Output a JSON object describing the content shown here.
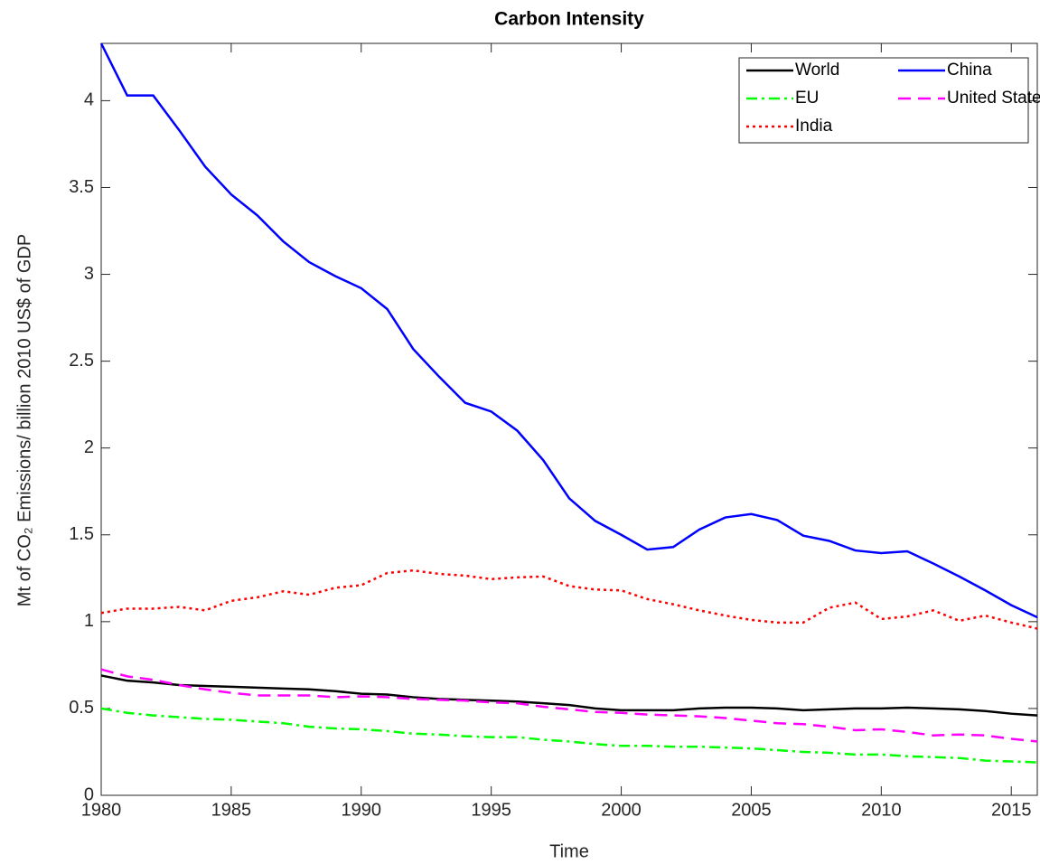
{
  "chart_data": {
    "type": "line",
    "title": "Carbon Intensity",
    "x_label": "Time",
    "y_label": "Mt of CO₂ Emissions/ billion 2010 US$ of GDP",
    "x": [
      1980,
      1981,
      1982,
      1983,
      1984,
      1985,
      1986,
      1987,
      1988,
      1989,
      1990,
      1991,
      1992,
      1993,
      1994,
      1995,
      1996,
      1997,
      1998,
      1999,
      2000,
      2001,
      2002,
      2003,
      2004,
      2005,
      2006,
      2007,
      2008,
      2009,
      2010,
      2011,
      2012,
      2013,
      2014,
      2015,
      2016
    ],
    "xlim": [
      1980,
      2016
    ],
    "xticks": [
      1980,
      1985,
      1990,
      1995,
      2000,
      2005,
      2010,
      2015
    ],
    "ylim": [
      0,
      4.33
    ],
    "yticks": [
      0,
      0.5,
      1,
      1.5,
      2,
      2.5,
      3,
      3.5,
      4
    ],
    "legend": "upper right",
    "series": [
      {
        "name": "World",
        "color": "#000000",
        "linestyle": "solid",
        "values": [
          0.69,
          0.66,
          0.65,
          0.635,
          0.63,
          0.625,
          0.62,
          0.615,
          0.61,
          0.6,
          0.585,
          0.58,
          0.565,
          0.555,
          0.55,
          0.545,
          0.54,
          0.53,
          0.52,
          0.5,
          0.49,
          0.49,
          0.49,
          0.5,
          0.505,
          0.505,
          0.5,
          0.49,
          0.495,
          0.5,
          0.5,
          0.505,
          0.5,
          0.495,
          0.485,
          0.47,
          0.46
        ]
      },
      {
        "name": "China",
        "color": "#0000ff",
        "linestyle": "solid",
        "values": [
          4.33,
          4.03,
          4.03,
          3.83,
          3.62,
          3.46,
          3.34,
          3.19,
          3.07,
          2.99,
          2.92,
          2.8,
          2.57,
          2.41,
          2.26,
          2.21,
          2.1,
          1.93,
          1.71,
          1.58,
          1.5,
          1.415,
          1.43,
          1.53,
          1.6,
          1.62,
          1.585,
          1.495,
          1.465,
          1.41,
          1.395,
          1.405,
          1.335,
          1.26,
          1.18,
          1.095,
          1.025
        ]
      },
      {
        "name": "EU",
        "color": "#00ff00",
        "linestyle": "dashdot",
        "values": [
          0.5,
          0.475,
          0.46,
          0.45,
          0.44,
          0.435,
          0.425,
          0.415,
          0.395,
          0.385,
          0.38,
          0.37,
          0.355,
          0.35,
          0.34,
          0.335,
          0.335,
          0.32,
          0.31,
          0.295,
          0.285,
          0.285,
          0.28,
          0.28,
          0.275,
          0.27,
          0.26,
          0.25,
          0.245,
          0.235,
          0.235,
          0.225,
          0.22,
          0.215,
          0.2,
          0.195,
          0.19
        ]
      },
      {
        "name": "United States",
        "color": "#ff00ff",
        "linestyle": "dashed",
        "values": [
          0.725,
          0.685,
          0.665,
          0.635,
          0.61,
          0.59,
          0.575,
          0.575,
          0.575,
          0.565,
          0.57,
          0.565,
          0.555,
          0.55,
          0.545,
          0.535,
          0.53,
          0.51,
          0.495,
          0.48,
          0.475,
          0.465,
          0.46,
          0.455,
          0.445,
          0.43,
          0.415,
          0.41,
          0.395,
          0.375,
          0.38,
          0.365,
          0.345,
          0.35,
          0.345,
          0.325,
          0.31
        ]
      },
      {
        "name": "India",
        "color": "#ff0000",
        "linestyle": "dotted",
        "values": [
          1.05,
          1.075,
          1.075,
          1.085,
          1.065,
          1.12,
          1.14,
          1.175,
          1.155,
          1.195,
          1.21,
          1.28,
          1.295,
          1.275,
          1.265,
          1.245,
          1.255,
          1.26,
          1.205,
          1.185,
          1.18,
          1.13,
          1.1,
          1.065,
          1.035,
          1.01,
          0.995,
          0.995,
          1.08,
          1.11,
          1.015,
          1.03,
          1.065,
          1.005,
          1.035,
          0.995,
          0.96
        ]
      }
    ]
  }
}
